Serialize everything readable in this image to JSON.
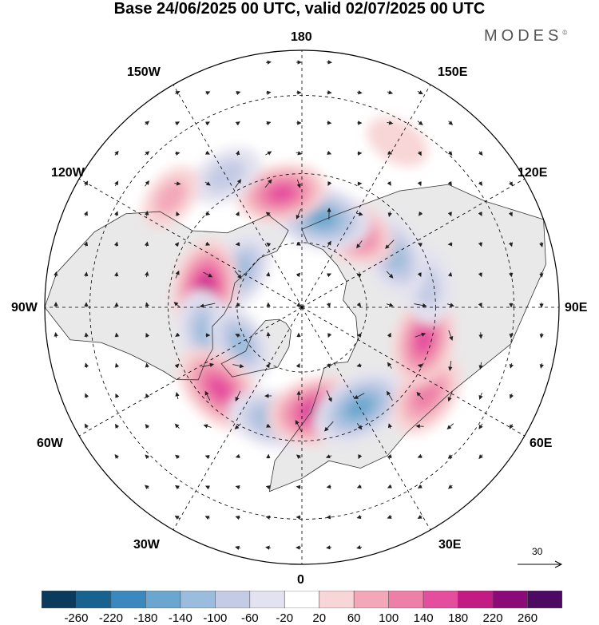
{
  "title": "Base 24/06/2025 00 UTC, valid 02/07/2025 00 UTC",
  "brand": "MODES",
  "brand_mark": "©",
  "lon_labels": {
    "n180": "180",
    "w150": "150W",
    "e150": "150E",
    "w120": "120W",
    "e120": "120E",
    "w90": "90W",
    "e90": "90E",
    "w60": "60W",
    "e60": "60E",
    "w30": "30W",
    "e30": "30E",
    "s0": "0"
  },
  "reference_vector": "30",
  "colorbar": {
    "ticks": [
      "-260",
      "-220",
      "-180",
      "-140",
      "-100",
      "-60",
      "-20",
      "20",
      "60",
      "100",
      "140",
      "180",
      "220",
      "260"
    ],
    "colors": [
      "#0b3a5c",
      "#17628f",
      "#3a88bd",
      "#6aa6cf",
      "#9bbcdc",
      "#c4cbe4",
      "#e3e2f0",
      "#ffffff",
      "#f8d5d6",
      "#f3a8b9",
      "#ee7fa7",
      "#e54e9e",
      "#c21c84",
      "#8c0a78",
      "#4d0a63"
    ]
  },
  "anomalies": [
    {
      "lon": -120,
      "lat": 68,
      "value": -110
    },
    {
      "lon": -100,
      "lat": 60,
      "value": 180
    },
    {
      "lon": -75,
      "lat": 60,
      "value": -120
    },
    {
      "lon": -60,
      "lat": 68,
      "value": -100
    },
    {
      "lon": -45,
      "lat": 55,
      "value": 170
    },
    {
      "lon": -15,
      "lat": 55,
      "value": -130
    },
    {
      "lon": 10,
      "lat": 58,
      "value": 200
    },
    {
      "lon": 30,
      "lat": 55,
      "value": -170
    },
    {
      "lon": 55,
      "lat": 45,
      "value": 130
    },
    {
      "lon": 75,
      "lat": 52,
      "value": 150
    },
    {
      "lon": 100,
      "lat": 52,
      "value": -90
    },
    {
      "lon": 120,
      "lat": 58,
      "value": -130
    },
    {
      "lon": 148,
      "lat": 62,
      "value": 150
    },
    {
      "lon": 168,
      "lat": 62,
      "value": -170
    },
    {
      "lon": -170,
      "lat": 55,
      "value": 140
    },
    {
      "lon": -150,
      "lat": 45,
      "value": -80
    },
    {
      "lon": -130,
      "lat": 40,
      "value": 60
    },
    {
      "lon": 150,
      "lat": 35,
      "value": 40
    }
  ]
}
